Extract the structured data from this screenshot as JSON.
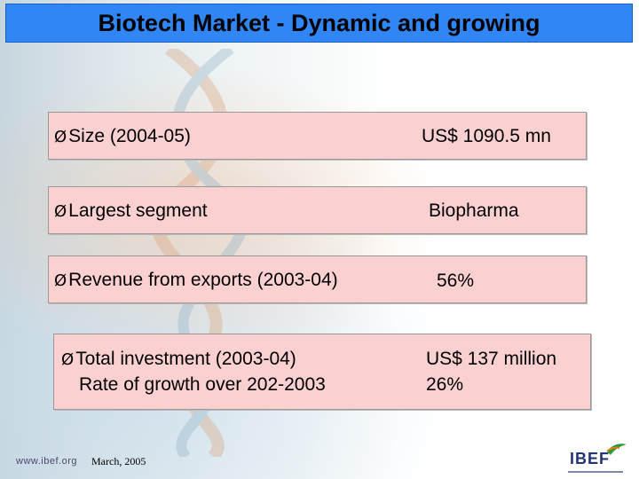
{
  "slide": {
    "title": "Biotech Market - Dynamic and growing"
  },
  "rows": [
    {
      "label": "Size (2004-05)",
      "value": "US$ 1090.5 mn"
    },
    {
      "label": "Largest segment",
      "value": "Biopharma"
    },
    {
      "label": "Revenue from exports (2003-04)",
      "value": "56%"
    },
    {
      "label": "Total investment (2003-04)",
      "label2": "Rate of growth over 202-2003",
      "value": "US$ 137 million",
      "value2": "26%"
    }
  ],
  "footer": {
    "url": "www.ibef.org",
    "date": "March, 2005",
    "logo": "IBEF"
  },
  "colors": {
    "title_bar": "#2f86f4",
    "box_fill": "#fad0d0",
    "logo_accent": "#2a9a3a"
  },
  "bullet": "Ø"
}
